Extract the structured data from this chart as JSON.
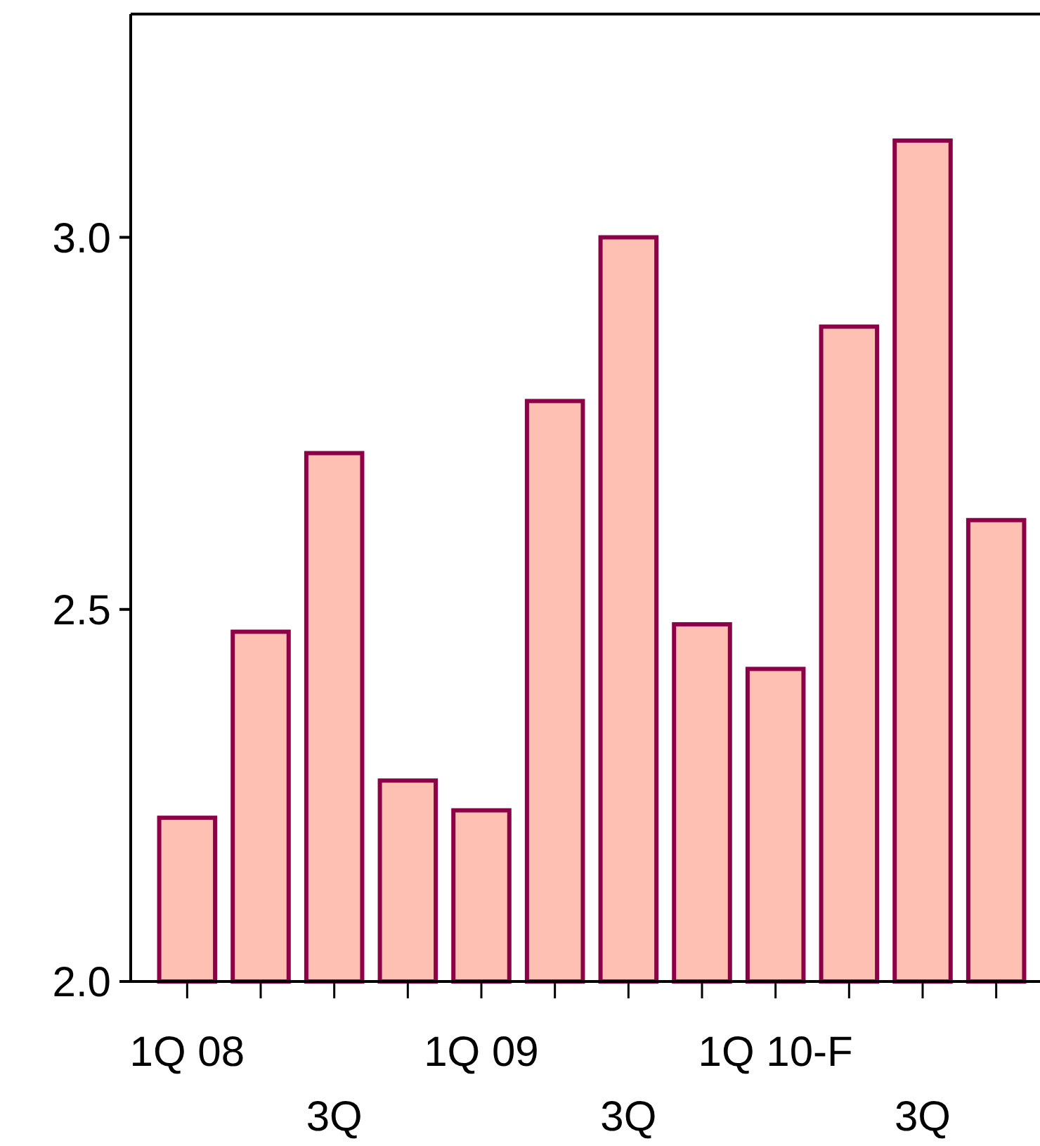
{
  "chart_data": {
    "type": "bar",
    "categories": [
      "1Q 08",
      null,
      "3Q",
      null,
      "1Q 09",
      null,
      "3Q",
      null,
      "1Q 10-F",
      null,
      "3Q",
      null
    ],
    "values": [
      2.22,
      2.47,
      2.71,
      2.27,
      2.23,
      2.78,
      3.0,
      2.48,
      2.42,
      2.88,
      3.13,
      2.62
    ],
    "color": "#ffc0b4",
    "ylim": [
      2.0,
      3.3
    ],
    "yticks": [
      {
        "value": 2.0,
        "label": "2.0"
      },
      {
        "value": 2.5,
        "label": "2.5"
      },
      {
        "value": 3.0,
        "label": "3.0"
      }
    ]
  }
}
